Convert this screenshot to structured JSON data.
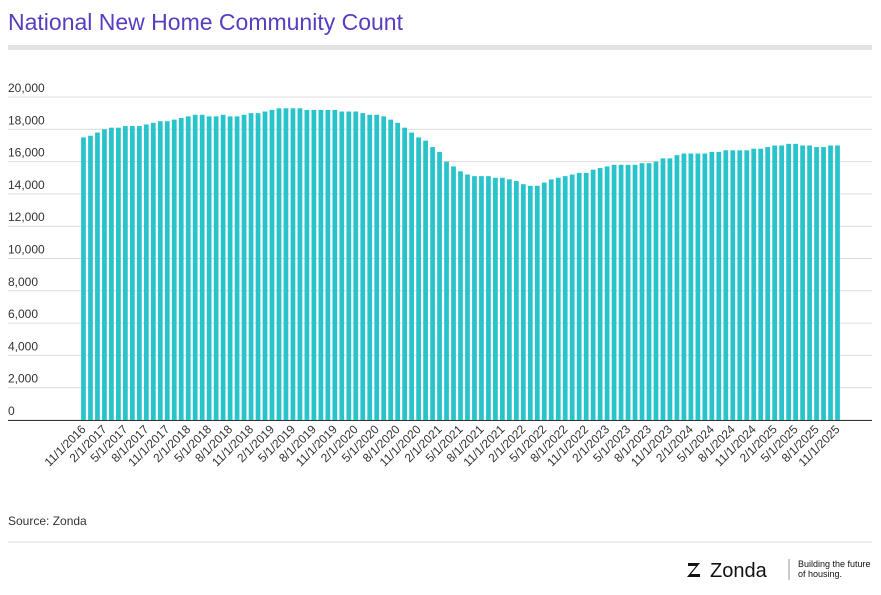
{
  "chart_data": {
    "type": "bar",
    "title": "National New Home Community Count",
    "categories": [
      "11/1/2016",
      null,
      null,
      "2/1/2017",
      null,
      null,
      "5/1/2017",
      null,
      null,
      "8/1/2017",
      null,
      null,
      "11/1/2017",
      null,
      null,
      "2/1/2018",
      null,
      null,
      "5/1/2018",
      null,
      null,
      "8/1/2018",
      null,
      null,
      "11/1/2018",
      null,
      null,
      "2/1/2019",
      null,
      null,
      "5/1/2019",
      null,
      null,
      "8/1/2019",
      null,
      null,
      "11/1/2019",
      null,
      null,
      "2/1/2020",
      null,
      null,
      "5/1/2020",
      null,
      null,
      "8/1/2020",
      null,
      null,
      "11/1/2020",
      null,
      null,
      "2/1/2021",
      null,
      null,
      "5/1/2021",
      null,
      null,
      "8/1/2021",
      null,
      null,
      "11/1/2021",
      null,
      null,
      "2/1/2022",
      null,
      null,
      "5/1/2022",
      null,
      null,
      "8/1/2022",
      null,
      null,
      "11/1/2022",
      null,
      null,
      "2/1/2023",
      null,
      null,
      "5/1/2023",
      null,
      null,
      "8/1/2023",
      null,
      null,
      "11/1/2023",
      null,
      null,
      "2/1/2024",
      null,
      null,
      "5/1/2024",
      null,
      null,
      "8/1/2024",
      null,
      null,
      "11/1/2024",
      null,
      null,
      "2/1/2025",
      null,
      null,
      "5/1/2025",
      null,
      null,
      "8/1/2025",
      null,
      null,
      "11/1/2025"
    ],
    "values": [
      17500,
      17600,
      17800,
      18000,
      18100,
      18100,
      18200,
      18200,
      18200,
      18300,
      18400,
      18500,
      18500,
      18600,
      18700,
      18800,
      18900,
      18900,
      18800,
      18800,
      18900,
      18800,
      18800,
      18900,
      19000,
      19000,
      19100,
      19200,
      19300,
      19300,
      19300,
      19300,
      19200,
      19200,
      19200,
      19200,
      19200,
      19100,
      19100,
      19100,
      19000,
      18900,
      18900,
      18800,
      18600,
      18400,
      18100,
      17800,
      17500,
      17300,
      16900,
      16600,
      16000,
      15700,
      15400,
      15200,
      15100,
      15100,
      15100,
      15000,
      15000,
      14900,
      14800,
      14600,
      14500,
      14500,
      14700,
      14900,
      15000,
      15100,
      15200,
      15300,
      15300,
      15500,
      15600,
      15700,
      15800,
      15800,
      15800,
      15800,
      15900,
      15900,
      16000,
      16200,
      16200,
      16400,
      16500,
      16500,
      16500,
      16500,
      16600,
      16600,
      16700,
      16700,
      16700,
      16700,
      16800,
      16800,
      16900,
      17000,
      17000,
      17100,
      17100,
      17000,
      17000,
      16900,
      16900,
      17000,
      17000
    ],
    "color": "#29c4cb",
    "ylim": [
      0,
      20000
    ],
    "yticks": [
      0,
      {
        "value": 2000,
        "label": "2,000"
      },
      {
        "value": 4000,
        "label": "4,000"
      },
      {
        "value": 6000,
        "label": "6,000"
      },
      {
        "value": 8000,
        "label": "8,000"
      },
      {
        "value": 10000,
        "label": "10,000"
      },
      {
        "value": 12000,
        "label": "12,000"
      },
      {
        "value": 14000,
        "label": "14,000"
      },
      {
        "value": 16000,
        "label": "16,000"
      },
      {
        "value": 18000,
        "label": "18,000"
      },
      {
        "value": 20000,
        "label": "20,000"
      }
    ],
    "grid": true,
    "source": "Source: Zonda"
  },
  "footer": {
    "brand": "Zonda",
    "tagline_1": "Building the future",
    "tagline_2": "of housing."
  }
}
